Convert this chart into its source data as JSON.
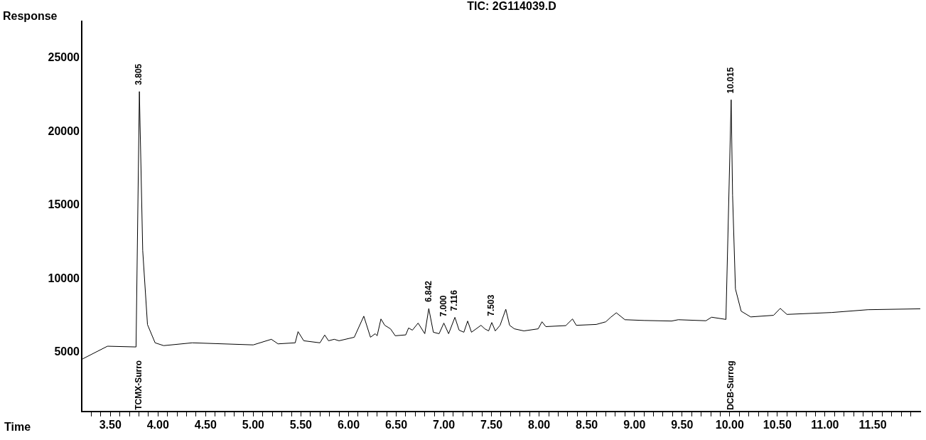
{
  "chart_data": {
    "type": "line",
    "title": "TIC: 2G114039.D",
    "xlabel": "Time",
    "ylabel": "Response",
    "x": [
      3.21,
      3.47,
      3.77,
      3.805,
      3.84,
      3.89,
      3.97,
      4.06,
      4.36,
      5.0,
      5.19,
      5.26,
      5.44,
      5.47,
      5.53,
      5.7,
      5.75,
      5.79,
      5.85,
      5.9,
      6.06,
      6.16,
      6.23,
      6.28,
      6.3,
      6.34,
      6.38,
      6.44,
      6.49,
      6.6,
      6.63,
      6.67,
      6.73,
      6.8,
      6.842,
      6.89,
      6.95,
      7.0,
      7.05,
      7.116,
      7.16,
      7.21,
      7.25,
      7.29,
      7.39,
      7.43,
      7.47,
      7.503,
      7.54,
      7.59,
      7.65,
      7.69,
      7.74,
      7.84,
      7.99,
      8.03,
      8.07,
      8.28,
      8.35,
      8.39,
      8.6,
      8.7,
      8.75,
      8.81,
      8.9,
      9.1,
      9.39,
      9.46,
      9.75,
      9.81,
      9.96,
      10.015,
      10.03,
      10.06,
      10.12,
      10.22,
      10.46,
      10.53,
      10.6,
      11.07,
      11.45,
      12.0
    ],
    "series": [
      {
        "color": "#000000",
        "values": [
          4570,
          5430,
          5380,
          22730,
          11930,
          6900,
          5660,
          5470,
          5660,
          5520,
          5900,
          5590,
          5660,
          6420,
          5800,
          5660,
          6190,
          5800,
          5900,
          5800,
          6040,
          7470,
          6040,
          6280,
          6140,
          7280,
          6850,
          6610,
          6140,
          6200,
          6670,
          6520,
          7000,
          6280,
          7990,
          6380,
          6280,
          7000,
          6280,
          7390,
          6520,
          6380,
          7140,
          6380,
          6850,
          6610,
          6470,
          7040,
          6470,
          6850,
          7940,
          6850,
          6610,
          6470,
          6610,
          7090,
          6760,
          6830,
          7280,
          6850,
          6910,
          7090,
          7390,
          7700,
          7230,
          7180,
          7140,
          7230,
          7160,
          7400,
          7250,
          22170,
          15690,
          9320,
          7810,
          7420,
          7530,
          8000,
          7590,
          7720,
          7910,
          7970
        ]
      }
    ],
    "xlim": [
      3.2,
      12.0
    ],
    "ylim": [
      1000,
      27500
    ],
    "xticks": [
      {
        "value": 3.3,
        "label": null
      },
      {
        "value": 3.4,
        "label": null
      },
      {
        "value": 3.5,
        "label": "3.50"
      },
      {
        "value": 3.6,
        "label": null
      },
      {
        "value": 3.7,
        "label": null
      },
      {
        "value": 3.8,
        "label": null
      },
      {
        "value": 3.9,
        "label": null
      },
      {
        "value": 4.0,
        "label": "4.00"
      },
      {
        "value": 4.1,
        "label": null
      },
      {
        "value": 4.2,
        "label": null
      },
      {
        "value": 4.3,
        "label": null
      },
      {
        "value": 4.4,
        "label": null
      },
      {
        "value": 4.5,
        "label": "4.50"
      },
      {
        "value": 4.6,
        "label": null
      },
      {
        "value": 4.7,
        "label": null
      },
      {
        "value": 4.8,
        "label": null
      },
      {
        "value": 4.9,
        "label": null
      },
      {
        "value": 5.0,
        "label": "5.00"
      },
      {
        "value": 5.1,
        "label": null
      },
      {
        "value": 5.2,
        "label": null
      },
      {
        "value": 5.3,
        "label": null
      },
      {
        "value": 5.4,
        "label": null
      },
      {
        "value": 5.5,
        "label": "5.50"
      },
      {
        "value": 5.6,
        "label": null
      },
      {
        "value": 5.7,
        "label": null
      },
      {
        "value": 5.8,
        "label": null
      },
      {
        "value": 5.9,
        "label": null
      },
      {
        "value": 6.0,
        "label": "6.00"
      },
      {
        "value": 6.1,
        "label": null
      },
      {
        "value": 6.2,
        "label": null
      },
      {
        "value": 6.3,
        "label": null
      },
      {
        "value": 6.4,
        "label": null
      },
      {
        "value": 6.5,
        "label": "6.50"
      },
      {
        "value": 6.6,
        "label": null
      },
      {
        "value": 6.7,
        "label": null
      },
      {
        "value": 6.8,
        "label": null
      },
      {
        "value": 6.9,
        "label": null
      },
      {
        "value": 7.0,
        "label": "7.00"
      },
      {
        "value": 7.1,
        "label": null
      },
      {
        "value": 7.2,
        "label": null
      },
      {
        "value": 7.3,
        "label": null
      },
      {
        "value": 7.4,
        "label": null
      },
      {
        "value": 7.5,
        "label": "7.50"
      },
      {
        "value": 7.6,
        "label": null
      },
      {
        "value": 7.7,
        "label": null
      },
      {
        "value": 7.8,
        "label": null
      },
      {
        "value": 7.9,
        "label": null
      },
      {
        "value": 8.0,
        "label": "8.00"
      },
      {
        "value": 8.1,
        "label": null
      },
      {
        "value": 8.2,
        "label": null
      },
      {
        "value": 8.3,
        "label": null
      },
      {
        "value": 8.4,
        "label": null
      },
      {
        "value": 8.5,
        "label": "8.50"
      },
      {
        "value": 8.6,
        "label": null
      },
      {
        "value": 8.7,
        "label": null
      },
      {
        "value": 8.8,
        "label": null
      },
      {
        "value": 8.9,
        "label": null
      },
      {
        "value": 9.0,
        "label": "9.00"
      },
      {
        "value": 9.1,
        "label": null
      },
      {
        "value": 9.2,
        "label": null
      },
      {
        "value": 9.3,
        "label": null
      },
      {
        "value": 9.4,
        "label": null
      },
      {
        "value": 9.5,
        "label": "9.50"
      },
      {
        "value": 9.6,
        "label": null
      },
      {
        "value": 9.7,
        "label": null
      },
      {
        "value": 9.8,
        "label": null
      },
      {
        "value": 9.9,
        "label": null
      },
      {
        "value": 10.0,
        "label": "10.00"
      },
      {
        "value": 10.1,
        "label": null
      },
      {
        "value": 10.2,
        "label": null
      },
      {
        "value": 10.3,
        "label": null
      },
      {
        "value": 10.4,
        "label": null
      },
      {
        "value": 10.5,
        "label": "10.50"
      },
      {
        "value": 10.6,
        "label": null
      },
      {
        "value": 10.7,
        "label": null
      },
      {
        "value": 10.8,
        "label": null
      },
      {
        "value": 10.9,
        "label": null
      },
      {
        "value": 11.0,
        "label": "11.00"
      },
      {
        "value": 11.1,
        "label": null
      },
      {
        "value": 11.2,
        "label": null
      },
      {
        "value": 11.3,
        "label": null
      },
      {
        "value": 11.4,
        "label": null
      },
      {
        "value": 11.5,
        "label": "11.50"
      },
      {
        "value": 11.6,
        "label": null
      },
      {
        "value": 11.7,
        "label": null
      },
      {
        "value": 11.8,
        "label": null
      },
      {
        "value": 11.9,
        "label": null
      }
    ],
    "yticks": [
      5000,
      10000,
      15000,
      20000,
      25000
    ],
    "grid": false,
    "legend": false,
    "marker": "none",
    "line_style": "solid",
    "annotations": [
      {
        "text": "3.805",
        "x": 3.805,
        "y": 22730
      },
      {
        "text": "6.842",
        "x": 6.842,
        "y": 7990
      },
      {
        "text": "7.000",
        "x": 7.0,
        "y": 7000
      },
      {
        "text": "7.116",
        "x": 7.116,
        "y": 7390
      },
      {
        "text": "7.503",
        "x": 7.503,
        "y": 7040
      },
      {
        "text": "10.015",
        "x": 10.015,
        "y": 22170
      },
      "TCMX-Surro",
      "DCB-Surrog"
    ]
  }
}
